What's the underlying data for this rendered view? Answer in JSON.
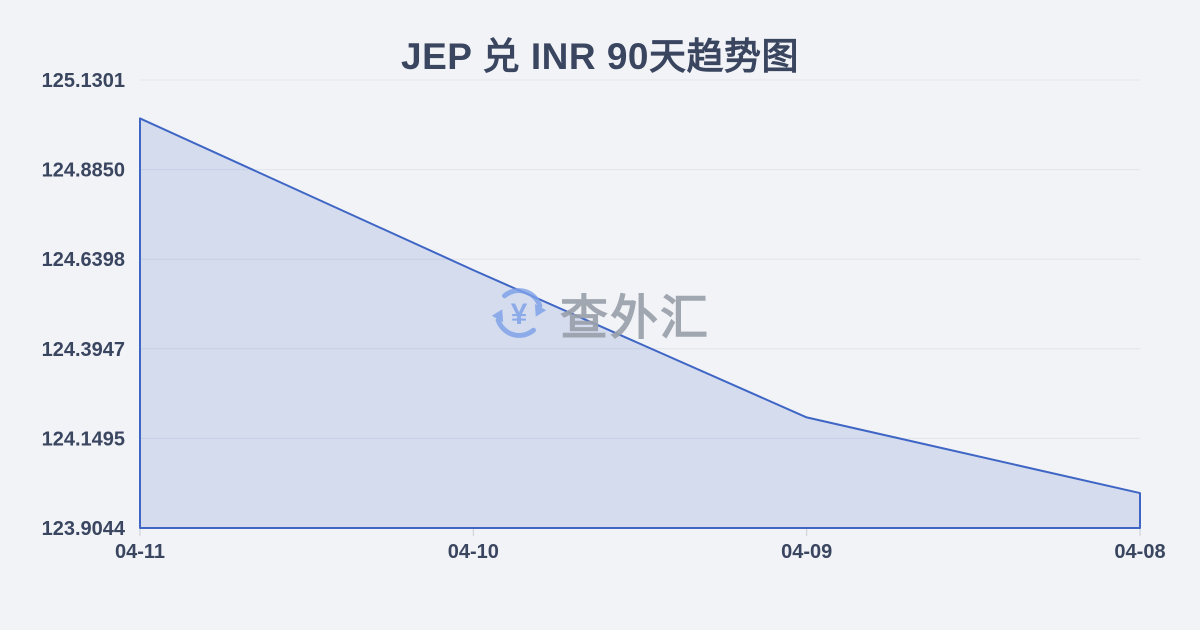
{
  "page": {
    "background_color": "#f1f3f6"
  },
  "header": {
    "title": "JEP 兑 INR 90天趋势图",
    "title_color": "#3a4560"
  },
  "watermark": {
    "icon": "yen-refresh-icon",
    "icon_color": "#7da0e8",
    "text": "查外汇",
    "text_color": "#9aa1ab"
  },
  "chart_data": {
    "type": "area",
    "title": "JEP 兑 INR 90天趋势图",
    "xlabel": "",
    "ylabel": "",
    "categories": [
      "04-11",
      "04-10",
      "04-09",
      "04-08"
    ],
    "series": [
      {
        "name": "JEP/INR",
        "values": [
          125.025,
          124.61,
          124.207,
          124.0
        ]
      }
    ],
    "ylim": [
      123.9044,
      125.1301
    ],
    "ytick_labels": [
      "125.1301",
      "124.8850",
      "124.6398",
      "124.3947",
      "124.1495",
      "123.9044"
    ],
    "xtick_labels": [
      "04-11",
      "04-10",
      "04-09",
      "04-08"
    ],
    "grid": true,
    "legend": false,
    "line_color": "#3f66c5",
    "fill_color": "rgba(63,102,197,0.16)",
    "gridline_color": "#e2e5ea",
    "tick_color": "#ccd0d6",
    "axis_label_color": "#3a4560"
  }
}
